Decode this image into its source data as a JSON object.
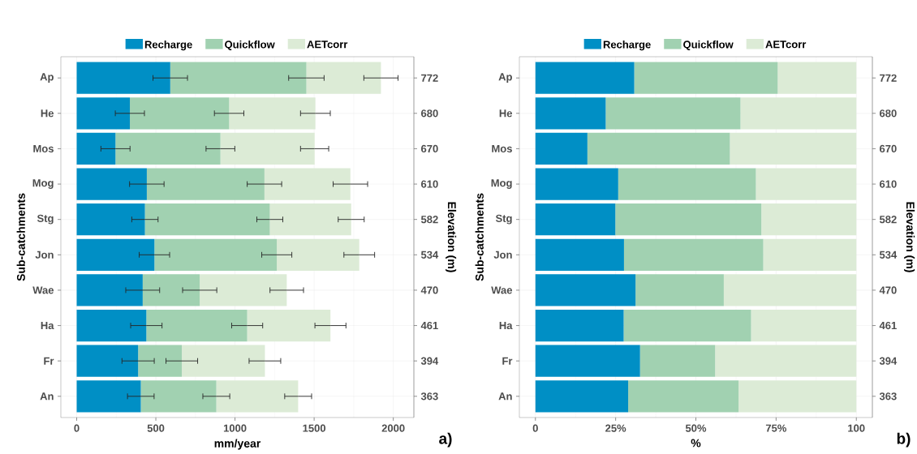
{
  "chart_data": [
    {
      "type": "bar",
      "orientation": "horizontal",
      "stacked": true,
      "grid": true,
      "legend": "top",
      "categories": [
        "Ap",
        "He",
        "Mos",
        "Mog",
        "Stg",
        "Jon",
        "Wae",
        "Ha",
        "Fr",
        "An"
      ],
      "y2_categories": [
        "772",
        "680",
        "670",
        "610",
        "582",
        "534",
        "470",
        "461",
        "394",
        "363"
      ],
      "xlabel": "mm/year",
      "ylabel": "Sub-catchments",
      "y2label": "Elevation (m)",
      "xlim": [
        -100,
        2130
      ],
      "xticks": [
        0,
        500,
        1000,
        1500,
        2000
      ],
      "series": [
        {
          "name": "Recharge",
          "color": "#008fc5",
          "values": [
            591,
            336,
            245,
            443,
            431,
            491,
            417,
            440,
            388,
            405
          ],
          "errors": [
            109,
            92,
            92,
            109,
            83,
            96,
            107,
            99,
            102,
            84
          ]
        },
        {
          "name": "Quickflow",
          "color": "#a1d1b1",
          "values": [
            860,
            627,
            663,
            743,
            789,
            773,
            360,
            637,
            276,
            477
          ],
          "errors": [
            112,
            93,
            91,
            109,
            82,
            95,
            108,
            98,
            100,
            85
          ]
        },
        {
          "name": "AETcorr",
          "color": "#dcebd6",
          "values": [
            471,
            545,
            595,
            543,
            514,
            521,
            550,
            526,
            525,
            517
          ],
          "errors": [
            108,
            94,
            89,
            109,
            82,
            97,
            106,
            98,
            100,
            85
          ]
        }
      ],
      "annotations": [
        "a)"
      ]
    },
    {
      "type": "bar",
      "orientation": "horizontal",
      "stacked": true,
      "grid": true,
      "legend": "top",
      "categories": [
        "Ap",
        "He",
        "Mos",
        "Mog",
        "Stg",
        "Jon",
        "Wae",
        "Ha",
        "Fr",
        "An"
      ],
      "y2_categories": [
        "772",
        "680",
        "670",
        "610",
        "582",
        "534",
        "470",
        "461",
        "394",
        "363"
      ],
      "xlabel": "%",
      "ylabel": "Sub-catchments",
      "y2label": "Elevation (m)",
      "xlim": [
        -5,
        105
      ],
      "xticks": [
        0,
        {
          "value": 25,
          "label": "25%"
        },
        {
          "value": 50,
          "label": "50%"
        },
        {
          "value": 75,
          "label": "75%"
        },
        100
      ],
      "series": [
        {
          "name": "Recharge",
          "color": "#008fc5",
          "values": [
            30.8,
            21.9,
            16.2,
            25.8,
            24.9,
            27.6,
            31.2,
            27.5,
            32.6,
            28.9
          ]
        },
        {
          "name": "Quickflow",
          "color": "#a1d1b1",
          "values": [
            44.7,
            42.0,
            44.4,
            42.9,
            45.5,
            43.4,
            27.5,
            39.7,
            23.4,
            34.4
          ]
        },
        {
          "name": "AETcorr",
          "color": "#dcebd6",
          "values": [
            24.5,
            36.1,
            39.4,
            31.3,
            29.6,
            29.0,
            41.3,
            32.8,
            44.0,
            36.7
          ]
        }
      ],
      "annotations": [
        "b)"
      ]
    }
  ]
}
